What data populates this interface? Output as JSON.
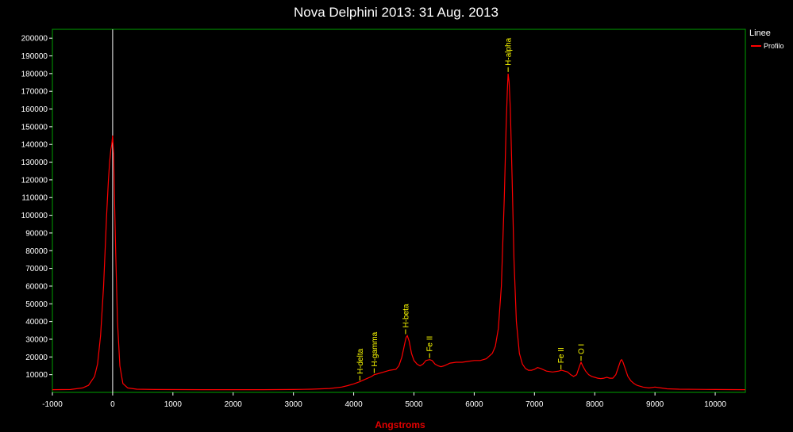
{
  "chart_data": {
    "type": "line",
    "title": "Nova Delphini 2013: 31 Aug. 2013",
    "xlabel": "Angstroms",
    "ylabel": "",
    "xlim": [
      -1000,
      10500
    ],
    "ylim": [
      0,
      205000
    ],
    "x_ticks": [
      -1000,
      0,
      1000,
      2000,
      3000,
      4000,
      5000,
      6000,
      7000,
      8000,
      9000,
      10000
    ],
    "y_ticks": [
      10000,
      20000,
      30000,
      40000,
      50000,
      60000,
      70000,
      80000,
      90000,
      100000,
      110000,
      120000,
      130000,
      140000,
      150000,
      160000,
      170000,
      180000,
      190000,
      200000
    ],
    "legend": {
      "title": "Linee",
      "position": "right",
      "entries": [
        "Profilo"
      ]
    },
    "colors": {
      "series": "#ff0000",
      "frame": "#00a000",
      "marker": "#ffffff",
      "annotation": "#ffff00"
    },
    "vertical_marker_x": 0,
    "series": [
      {
        "name": "Profilo",
        "x": [
          -1000,
          -700,
          -500,
          -400,
          -300,
          -250,
          -200,
          -150,
          -100,
          -70,
          -50,
          -30,
          -15,
          0,
          15,
          30,
          50,
          80,
          120,
          170,
          250,
          400,
          700,
          1500,
          2500,
          3000,
          3300,
          3600,
          3800,
          3900,
          4000,
          4100,
          4200,
          4300,
          4340,
          4400,
          4500,
          4600,
          4700,
          4750,
          4800,
          4850,
          4870,
          4890,
          4920,
          4960,
          5000,
          5050,
          5100,
          5150,
          5200,
          5260,
          5300,
          5350,
          5400,
          5450,
          5500,
          5600,
          5700,
          5800,
          5900,
          6000,
          6100,
          6200,
          6300,
          6350,
          6400,
          6450,
          6500,
          6530,
          6550,
          6563,
          6580,
          6600,
          6630,
          6660,
          6700,
          6750,
          6800,
          6850,
          6900,
          6950,
          7000,
          7050,
          7100,
          7200,
          7300,
          7400,
          7450,
          7500,
          7550,
          7600,
          7650,
          7700,
          7750,
          7773,
          7800,
          7850,
          7900,
          7950,
          8000,
          8050,
          8100,
          8150,
          8200,
          8250,
          8300,
          8350,
          8400,
          8430,
          8446,
          8470,
          8500,
          8550,
          8600,
          8650,
          8700,
          8800,
          8900,
          9000,
          9100,
          9200,
          9400,
          9700,
          10000,
          10500
        ],
        "values": [
          1500,
          1600,
          2500,
          4000,
          9000,
          16000,
          32000,
          60000,
          100000,
          120000,
          130000,
          137000,
          140000,
          145000,
          135000,
          110000,
          80000,
          40000,
          15000,
          5000,
          2500,
          1800,
          1600,
          1500,
          1500,
          1600,
          1800,
          2200,
          3000,
          3800,
          4800,
          6000,
          7500,
          9000,
          10000,
          10500,
          11500,
          12500,
          13000,
          15000,
          20000,
          28000,
          31000,
          32000,
          29000,
          22000,
          18000,
          16000,
          15000,
          16000,
          18000,
          18500,
          18000,
          16000,
          15000,
          14500,
          15000,
          16500,
          17000,
          17000,
          17500,
          18000,
          18000,
          19000,
          22000,
          26000,
          36000,
          60000,
          110000,
          150000,
          170000,
          180000,
          175000,
          160000,
          120000,
          75000,
          40000,
          22000,
          16000,
          13500,
          12500,
          12500,
          13000,
          14000,
          13500,
          12000,
          11500,
          12000,
          12500,
          12000,
          11500,
          10000,
          9000,
          10000,
          15000,
          17000,
          15000,
          12000,
          10000,
          9000,
          8500,
          8000,
          7800,
          8000,
          8500,
          8000,
          8000,
          10000,
          15000,
          18000,
          18500,
          17000,
          14000,
          9000,
          6500,
          5000,
          4000,
          3000,
          2500,
          3000,
          2500,
          2000,
          1800,
          1700,
          1600,
          1500
        ]
      }
    ],
    "annotations": [
      {
        "label": "H-delta",
        "x": 4102,
        "y": 5800
      },
      {
        "label": "H-gamma",
        "x": 4340,
        "y": 10000
      },
      {
        "label": "H-beta",
        "x": 4861,
        "y": 32000
      },
      {
        "label": "Fe II",
        "x": 5260,
        "y": 18500
      },
      {
        "label": "H-alpha",
        "x": 6563,
        "y": 180000
      },
      {
        "label": "Fe II",
        "x": 7440,
        "y": 12000
      },
      {
        "label": "O I",
        "x": 7773,
        "y": 17000
      }
    ]
  }
}
